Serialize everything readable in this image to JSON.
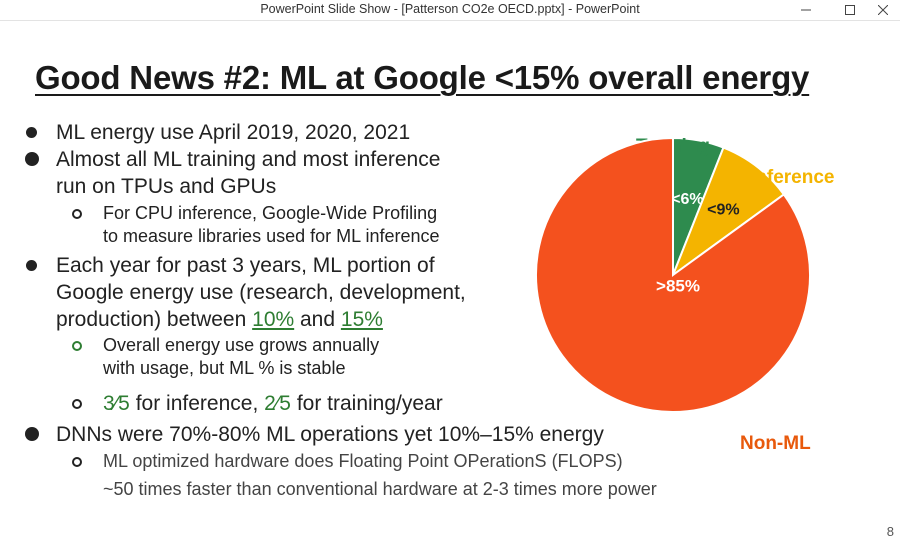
{
  "window": {
    "title": "PowerPoint Slide Show - [Patterson CO2e OECD.pptx] - PowerPoint",
    "minimize_icon": "minimize-icon",
    "maximize_icon": "maximize-icon",
    "close_icon": "close-icon"
  },
  "slide": {
    "title": "Good News #2: ML at Google <15% overall energy",
    "bullets": {
      "b1": "ML energy use April 2019, 2020, 2021",
      "b2_line1": "Almost all ML training and most inference",
      "b2_line2": "run on TPUs and GPUs",
      "b2_sub_line1": "For CPU inference, Google-Wide Profiling",
      "b2_sub_line2": "to measure libraries used for ML inference",
      "b3_line1": "Each year for past 3 years, ML portion of",
      "b3_line2": "Google energy use (research, development,",
      "b3_line3_pre": "production) between ",
      "b3_link1": "10%",
      "b3_mid": " and ",
      "b3_link2": "15%",
      "b3_sub1_line1": "Overall energy use grows annually",
      "b3_sub1_line2": "with usage, but ML % is stable",
      "b3_sub2_frac1": "3⁄5",
      "b3_sub2_text1": " for inference, ",
      "b3_sub2_frac2": "2⁄5",
      "b3_sub2_text2": " for training/year",
      "b4": "DNNs were 70%-80% ML operations yet 10%–15% energy",
      "b4_sub_line1": "ML optimized hardware does Floating Point OPerationS (FLOPS)",
      "b4_sub_line2": "~50 times faster than conventional hardware at 2-3 times more power"
    },
    "page_number": "8"
  },
  "chart_data": {
    "type": "pie",
    "title": "",
    "slices": [
      {
        "name": "Training",
        "value": 6,
        "label": "<6%",
        "color": "#2e8b4e",
        "name_color": "#2e8b4e"
      },
      {
        "name": "Inference",
        "value": 9,
        "label": "<9%",
        "color": "#f4b400",
        "name_color": "#f4b400"
      },
      {
        "name": "Non-ML",
        "value": 85,
        "label": ">85%",
        "color": "#f4511e",
        "name_color": "#e8590c"
      }
    ]
  }
}
